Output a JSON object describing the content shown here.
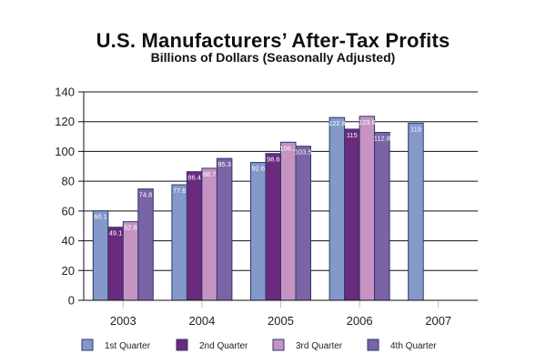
{
  "chart_data": {
    "type": "bar",
    "title": "U.S. Manufacturers’ After-Tax Profits",
    "subtitle": "Billions of Dollars (Seasonally Adjusted)",
    "xlabel": "",
    "ylabel": "",
    "categories": [
      "2003",
      "2004",
      "2005",
      "2006",
      "2007"
    ],
    "ylim": [
      0,
      140
    ],
    "yticks": [
      0,
      20,
      40,
      60,
      80,
      100,
      120,
      140
    ],
    "grid": true,
    "legend_position": "bottom",
    "series": [
      {
        "name": "1st Quarter",
        "color": "#8499c9",
        "values": [
          60.1,
          77.6,
          92.6,
          122.8,
          119
        ],
        "labels": [
          "60.1",
          "77.6",
          "92.6",
          "122.8",
          "119"
        ]
      },
      {
        "name": "2nd Quarter",
        "color": "#6a2a7e",
        "values": [
          49.1,
          86.4,
          98.6,
          115,
          null
        ],
        "labels": [
          "49.1",
          "86.4",
          "98.6",
          "115",
          ""
        ]
      },
      {
        "name": "3rd Quarter",
        "color": "#c693c3",
        "values": [
          52.8,
          88.7,
          106.2,
          123.6,
          null
        ],
        "labels": [
          "52.8",
          "88.7",
          "106.2",
          "123.6",
          ""
        ]
      },
      {
        "name": "4th Quarter",
        "color": "#7a64a6",
        "values": [
          74.8,
          95.3,
          103.5,
          112.8,
          null
        ],
        "labels": [
          "74.8",
          "95.3",
          "103.5",
          "112.8",
          ""
        ]
      }
    ]
  }
}
